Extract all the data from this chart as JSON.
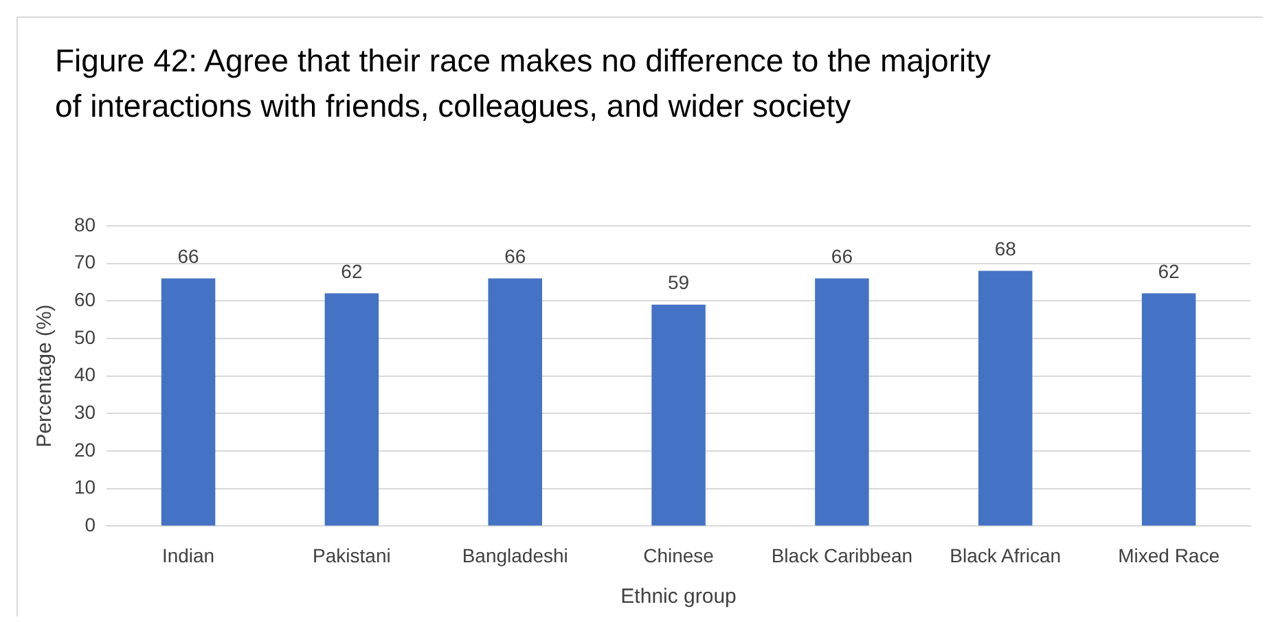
{
  "chart_data": {
    "type": "bar",
    "title": "Figure 42: Agree that their race makes no difference to the majority of interactions with friends, colleagues, and wider society",
    "xlabel": "Ethnic group",
    "ylabel": "Percentage (%)",
    "categories": [
      "Indian",
      "Pakistani",
      "Bangladeshi",
      "Chinese",
      "Black Caribbean",
      "Black African",
      "Mixed Race"
    ],
    "values": [
      66,
      62,
      66,
      59,
      66,
      68,
      62
    ],
    "color": "#4472c4",
    "ylim": [
      0,
      80
    ],
    "yticks": [
      0,
      10,
      20,
      30,
      40,
      50,
      60,
      70,
      80
    ],
    "grid": "y",
    "data_labels": true
  }
}
